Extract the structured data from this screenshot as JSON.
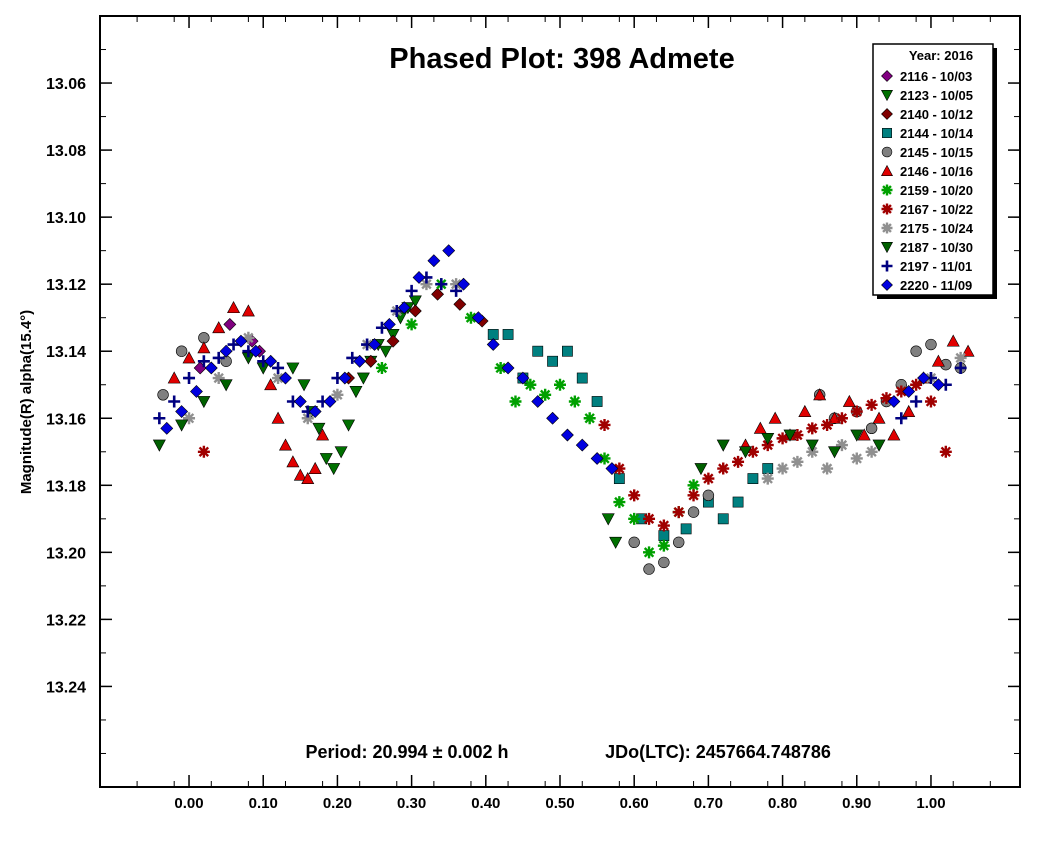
{
  "chart_data": {
    "type": "scatter",
    "title": "Phased Plot: 398 Admete",
    "ylabel": "Magnitude(R) alpha(15.4°)",
    "xlabel": "",
    "xlim": [
      -0.12,
      1.12
    ],
    "ylim": [
      13.04,
      13.27
    ],
    "y_inverted": true,
    "grid": false,
    "legend_placement": "top-right",
    "x_ticks": [
      0.0,
      0.1,
      0.2,
      0.3,
      0.4,
      0.5,
      0.6,
      0.7,
      0.8,
      0.9,
      1.0
    ],
    "x_tick_labels": [
      "0.00",
      "0.10",
      "0.20",
      "0.30",
      "0.40",
      "0.50",
      "0.60",
      "0.70",
      "0.80",
      "0.90",
      "1.00"
    ],
    "y_ticks": [
      13.06,
      13.08,
      13.1,
      13.12,
      13.14,
      13.16,
      13.18,
      13.2,
      13.22,
      13.24
    ],
    "y_tick_labels": [
      "13.06",
      "13.08",
      "13.10",
      "13.12",
      "13.14",
      "13.16",
      "13.18",
      "13.20",
      "13.22",
      "13.24"
    ],
    "annotation": {
      "period": "Period: 20.994 ± 0.002 h",
      "jd": "JDo(LTC): 2457664.748786"
    },
    "legend_title": "Year: 2016",
    "series": [
      {
        "name": "2116 - 10/03",
        "marker": "diamond",
        "color": "#800080",
        "x": [
          0.015,
          0.055,
          0.085,
          0.095
        ],
        "y": [
          13.145,
          13.132,
          13.137,
          13.14
        ]
      },
      {
        "name": "2123 - 10/05",
        "marker": "triangle-down",
        "color": "#007000",
        "x": [
          0.14,
          0.155,
          0.165,
          0.175,
          0.185,
          0.195,
          0.205,
          0.215,
          0.225,
          0.235,
          0.245,
          0.255,
          0.265,
          0.275,
          0.285,
          0.295,
          0.305,
          0.565,
          0.575
        ],
        "y": [
          13.145,
          13.15,
          13.158,
          13.163,
          13.172,
          13.175,
          13.17,
          13.162,
          13.152,
          13.148,
          13.143,
          13.138,
          13.14,
          13.135,
          13.13,
          13.127,
          13.125,
          13.19,
          13.197
        ]
      },
      {
        "name": "2140 - 10/12",
        "marker": "diamond",
        "color": "#800000",
        "x": [
          0.215,
          0.245,
          0.275,
          0.305,
          0.335,
          0.365,
          0.395
        ],
        "y": [
          13.148,
          13.143,
          13.137,
          13.128,
          13.123,
          13.126,
          13.131
        ]
      },
      {
        "name": "2144 - 10/14",
        "marker": "square",
        "color": "#008080",
        "x": [
          0.41,
          0.43,
          0.45,
          0.47,
          0.49,
          0.51,
          0.53,
          0.55,
          0.58,
          0.61,
          0.64,
          0.67,
          0.7,
          0.72,
          0.74,
          0.76,
          0.78
        ],
        "y": [
          13.135,
          13.135,
          13.148,
          13.14,
          13.143,
          13.14,
          13.148,
          13.155,
          13.178,
          13.19,
          13.195,
          13.193,
          13.185,
          13.19,
          13.185,
          13.178,
          13.175
        ]
      },
      {
        "name": "2145 - 10/15",
        "marker": "circle",
        "color": "#808080",
        "x": [
          -0.035,
          -0.01,
          0.02,
          0.05,
          0.6,
          0.62,
          0.64,
          0.66,
          0.68,
          0.7,
          0.85,
          0.87,
          0.9,
          0.92,
          0.94,
          0.96,
          0.98,
          1.0,
          1.02,
          1.04
        ],
        "y": [
          13.153,
          13.14,
          13.136,
          13.143,
          13.197,
          13.205,
          13.203,
          13.197,
          13.188,
          13.183,
          13.153,
          13.16,
          13.158,
          13.163,
          13.155,
          13.15,
          13.14,
          13.138,
          13.144,
          13.145
        ]
      },
      {
        "name": "2146 - 10/16",
        "marker": "triangle-up",
        "color": "#e00000",
        "x": [
          -0.02,
          0.0,
          0.02,
          0.04,
          0.06,
          0.08,
          0.11,
          0.12,
          0.13,
          0.14,
          0.15,
          0.16,
          0.17,
          0.18,
          0.75,
          0.77,
          0.79,
          0.81,
          0.83,
          0.85,
          0.87,
          0.89,
          0.91,
          0.93,
          0.95,
          0.97,
          0.99,
          1.01,
          1.03,
          1.05
        ],
        "y": [
          13.148,
          13.142,
          13.139,
          13.133,
          13.127,
          13.128,
          13.15,
          13.16,
          13.168,
          13.173,
          13.177,
          13.178,
          13.175,
          13.165,
          13.168,
          13.163,
          13.16,
          13.165,
          13.158,
          13.153,
          13.16,
          13.155,
          13.165,
          13.16,
          13.165,
          13.158,
          13.148,
          13.143,
          13.137,
          13.14
        ]
      },
      {
        "name": "2159 - 10/20",
        "marker": "star",
        "color": "#00a000",
        "x": [
          0.26,
          0.3,
          0.34,
          0.38,
          0.42,
          0.44,
          0.46,
          0.48,
          0.5,
          0.52,
          0.54,
          0.56,
          0.58,
          0.6,
          0.62,
          0.64,
          0.66,
          0.68
        ],
        "y": [
          13.145,
          13.132,
          13.12,
          13.13,
          13.145,
          13.155,
          13.15,
          13.153,
          13.15,
          13.155,
          13.16,
          13.172,
          13.185,
          13.19,
          13.2,
          13.198,
          13.188,
          13.18
        ]
      },
      {
        "name": "2167 - 10/22",
        "marker": "star",
        "color": "#a00000",
        "x": [
          0.02,
          0.56,
          0.58,
          0.6,
          0.62,
          0.64,
          0.66,
          0.68,
          0.7,
          0.72,
          0.74,
          0.76,
          0.78,
          0.8,
          0.82,
          0.84,
          0.86,
          0.88,
          0.9,
          0.92,
          0.94,
          0.96,
          0.98,
          1.0,
          1.02
        ],
        "y": [
          13.17,
          13.162,
          13.175,
          13.183,
          13.19,
          13.192,
          13.188,
          13.183,
          13.178,
          13.175,
          13.173,
          13.17,
          13.168,
          13.166,
          13.165,
          13.163,
          13.162,
          13.16,
          13.158,
          13.156,
          13.154,
          13.152,
          13.15,
          13.155,
          13.17
        ]
      },
      {
        "name": "2175 - 10/24",
        "marker": "star",
        "color": "#909090",
        "x": [
          0.0,
          0.04,
          0.08,
          0.12,
          0.16,
          0.2,
          0.24,
          0.28,
          0.32,
          0.36,
          0.78,
          0.8,
          0.82,
          0.84,
          0.86,
          0.88,
          0.9,
          0.92,
          1.0,
          1.04
        ],
        "y": [
          13.16,
          13.148,
          13.136,
          13.148,
          13.16,
          13.153,
          13.138,
          13.128,
          13.12,
          13.12,
          13.178,
          13.175,
          13.173,
          13.17,
          13.175,
          13.168,
          13.172,
          13.17,
          13.148,
          13.142
        ]
      },
      {
        "name": "2187 - 10/30",
        "marker": "triangle-down",
        "color": "#006000",
        "x": [
          -0.04,
          -0.01,
          0.02,
          0.05,
          0.08,
          0.1,
          0.69,
          0.72,
          0.75,
          0.78,
          0.81,
          0.84,
          0.87,
          0.9,
          0.93
        ],
        "y": [
          13.168,
          13.162,
          13.155,
          13.15,
          13.142,
          13.145,
          13.175,
          13.168,
          13.17,
          13.166,
          13.165,
          13.168,
          13.17,
          13.165,
          13.168
        ]
      },
      {
        "name": "2197 - 11/01",
        "marker": "plus",
        "color": "#000080",
        "x": [
          -0.04,
          -0.02,
          0.0,
          0.02,
          0.04,
          0.06,
          0.08,
          0.1,
          0.12,
          0.14,
          0.16,
          0.18,
          0.2,
          0.22,
          0.24,
          0.26,
          0.28,
          0.3,
          0.32,
          0.34,
          0.36,
          0.96,
          0.98,
          1.0,
          1.02,
          1.04
        ],
        "y": [
          13.16,
          13.155,
          13.148,
          13.143,
          13.142,
          13.138,
          13.14,
          13.143,
          13.145,
          13.155,
          13.158,
          13.155,
          13.148,
          13.142,
          13.138,
          13.133,
          13.128,
          13.122,
          13.118,
          13.12,
          13.122,
          13.16,
          13.155,
          13.148,
          13.15,
          13.145
        ]
      },
      {
        "name": "2220 - 11/09",
        "marker": "diamond",
        "color": "#0000e0",
        "x": [
          -0.03,
          -0.01,
          0.01,
          0.03,
          0.05,
          0.07,
          0.09,
          0.11,
          0.13,
          0.15,
          0.17,
          0.19,
          0.21,
          0.23,
          0.25,
          0.27,
          0.29,
          0.31,
          0.33,
          0.35,
          0.37,
          0.39,
          0.41,
          0.43,
          0.45,
          0.47,
          0.49,
          0.51,
          0.53,
          0.55,
          0.57,
          0.95,
          0.97,
          0.99,
          1.01
        ],
        "y": [
          13.163,
          13.158,
          13.152,
          13.145,
          13.14,
          13.137,
          13.14,
          13.143,
          13.148,
          13.155,
          13.158,
          13.155,
          13.148,
          13.143,
          13.138,
          13.132,
          13.127,
          13.118,
          13.113,
          13.11,
          13.12,
          13.13,
          13.138,
          13.145,
          13.148,
          13.155,
          13.16,
          13.165,
          13.168,
          13.172,
          13.175,
          13.155,
          13.152,
          13.148,
          13.15
        ]
      }
    ]
  }
}
